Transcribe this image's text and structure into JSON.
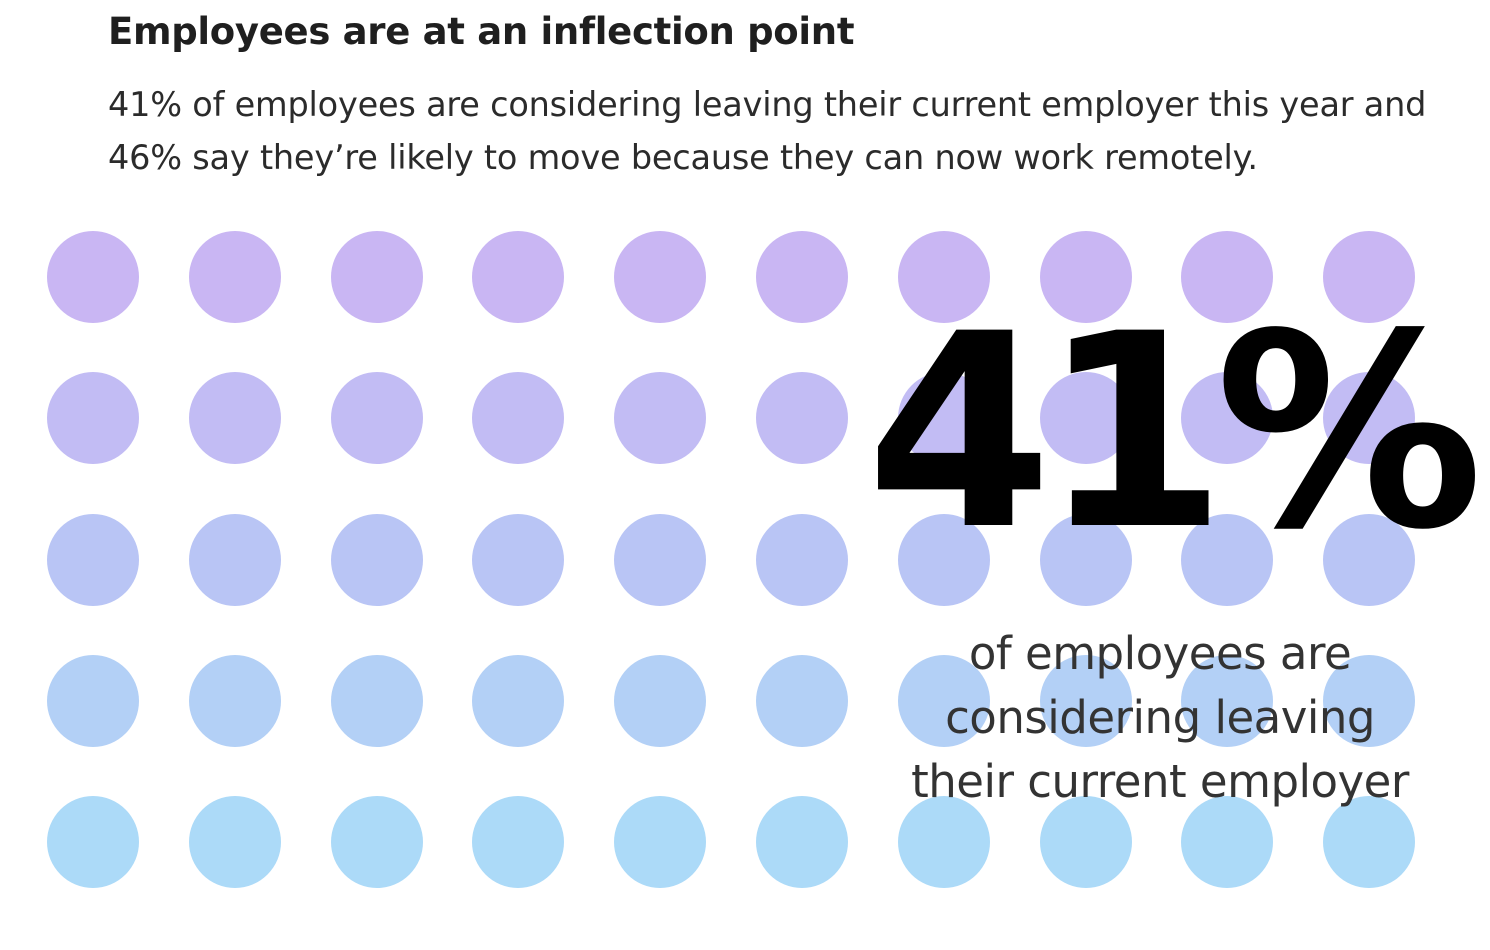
{
  "heading": "Employees are at an inflection point",
  "summary": "41% of employees are considering leaving their current employer this year and 46% say they’re likely to move because they can now work remotely.",
  "stat": {
    "value": "41%",
    "caption_line1": "of employees are",
    "caption_line2": "considering leaving",
    "caption_line3": "their current employer"
  },
  "dot_grid": {
    "rows": 5,
    "columns": 10,
    "row_colors": [
      "#c9b6f3",
      "#c2bcf4",
      "#b9c5f5",
      "#b3d0f6",
      "#acdaf8"
    ]
  }
}
